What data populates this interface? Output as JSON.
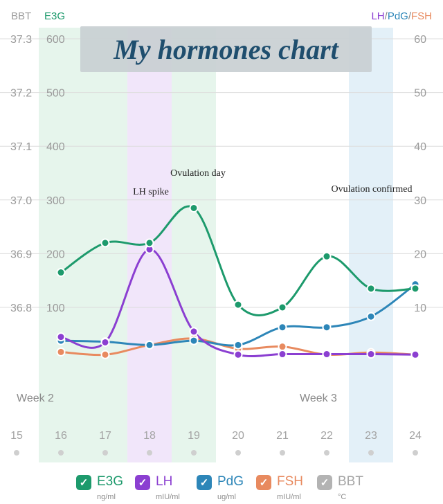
{
  "title": "My hormones chart",
  "header": {
    "left_bbt": "BBT",
    "left_e3g": "E3G",
    "right_lh": "LH",
    "right_pdg": "PdG",
    "right_fsh": "FSH",
    "slash": "/"
  },
  "annotations": {
    "lh_spike": "LH spike",
    "ovulation_day": "Ovulation day",
    "ovulation_confirmed": "Ovulation confirmed",
    "week2": "Week 2",
    "week3": "Week 3"
  },
  "legend": [
    {
      "key": "e3g",
      "label": "E3G",
      "unit": "ng/ml",
      "color": "#1d9a6c"
    },
    {
      "key": "lh",
      "label": "LH",
      "unit": "mIU/ml",
      "color": "#8b3fd1"
    },
    {
      "key": "pdg",
      "label": "PdG",
      "unit": "ug/ml",
      "color": "#2d86b8"
    },
    {
      "key": "fsh",
      "label": "FSH",
      "unit": "mIU/ml",
      "color": "#e88a5f"
    },
    {
      "key": "bbt",
      "label": "BBT",
      "unit": "°C",
      "color": "#b3b3b3"
    }
  ],
  "colors": {
    "e3g": "#1d9a6c",
    "lh": "#8b3fd1",
    "pdg": "#2d86b8",
    "fsh": "#e88a5f",
    "bbt": "#b3b3b3",
    "grid": "#dcdcdc",
    "band_green": "#e6f5ec",
    "band_purple": "#f1e6fa",
    "band_blue": "#e3f0f8"
  },
  "chart_data": {
    "type": "line",
    "title": "My hormones chart",
    "x": [
      15,
      16,
      17,
      18,
      19,
      20,
      21,
      22,
      23,
      24
    ],
    "x_label_highlight": {
      "16": "green",
      "17": "green",
      "18": "purple",
      "19": "green",
      "23": "blue"
    },
    "bbt_ticks": [
      "37.3",
      "37.2",
      "37.1",
      "37.0",
      "36.9",
      "36.8"
    ],
    "e3g_ticks": [
      "600",
      "500",
      "400",
      "300",
      "200",
      "100"
    ],
    "right_ticks": [
      "60",
      "50",
      "40",
      "30",
      "20",
      "10"
    ],
    "left_axis": {
      "name": "E3G",
      "ylim": [
        0,
        600
      ]
    },
    "right_axis": {
      "name": "LH/PdG/FSH",
      "ylim": [
        0,
        60
      ]
    },
    "bbt_axis": {
      "name": "BBT",
      "ylim": [
        36.7,
        37.3
      ]
    },
    "series": [
      {
        "name": "E3G",
        "axis": "left",
        "x": [
          16,
          17,
          18,
          19,
          20,
          21,
          22,
          23,
          24
        ],
        "values": [
          165,
          220,
          220,
          285,
          105,
          100,
          195,
          135,
          135
        ]
      },
      {
        "name": "LH",
        "axis": "right",
        "x": [
          16,
          17,
          18,
          19,
          20,
          21,
          22,
          23,
          24
        ],
        "values": [
          4.5,
          3.5,
          20.8,
          5.5,
          1.2,
          1.3,
          1.3,
          1.3,
          1.2
        ]
      },
      {
        "name": "PdG",
        "axis": "right",
        "x": [
          16,
          17,
          18,
          19,
          20,
          21,
          22,
          23,
          24
        ],
        "values": [
          3.8,
          3.6,
          3.0,
          3.8,
          3.0,
          6.3,
          6.3,
          8.3,
          14.3
        ]
      },
      {
        "name": "FSH",
        "axis": "right",
        "x": [
          16,
          17,
          18,
          19,
          20,
          21,
          22,
          23,
          24
        ],
        "values": [
          1.7,
          1.2,
          3.0,
          4.2,
          2.3,
          2.7,
          1.2,
          1.6,
          1.2
        ]
      }
    ],
    "highlight_days": {
      "green": [
        16,
        17,
        19
      ],
      "purple": [
        18
      ],
      "blue": [
        23
      ]
    },
    "grid": true,
    "legend_position": "bottom"
  }
}
